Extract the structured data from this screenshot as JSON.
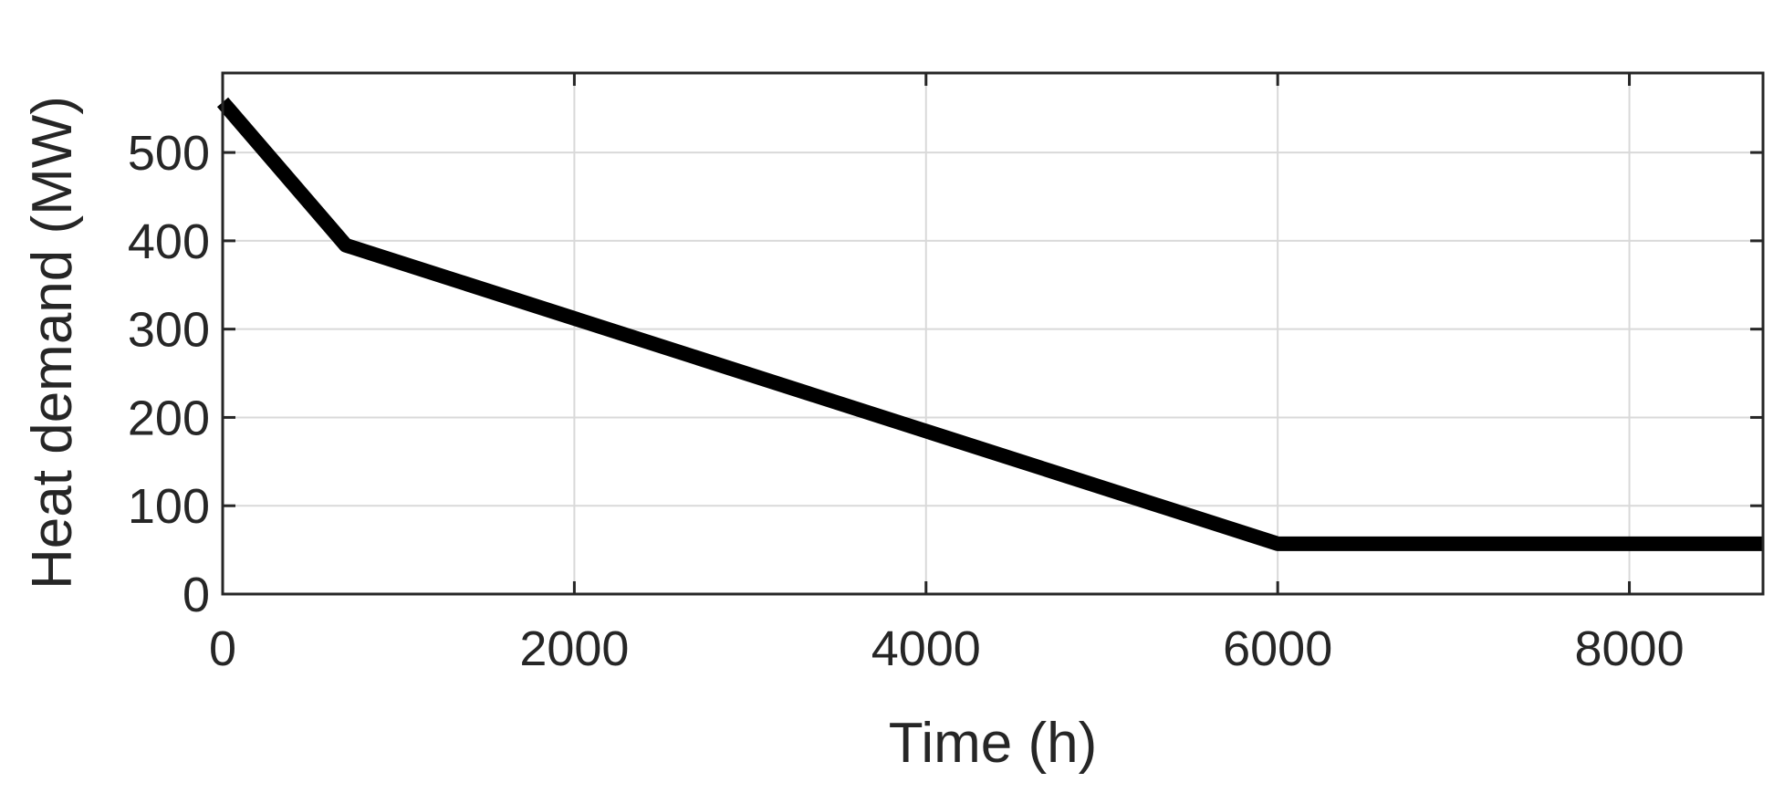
{
  "chart_data": {
    "type": "line",
    "title": "",
    "xlabel": "Time (h)",
    "ylabel": "Heat demand (MW)",
    "xlim": [
      0,
      8760
    ],
    "ylim": [
      0,
      590
    ],
    "xticks": [
      0,
      2000,
      4000,
      6000,
      8000
    ],
    "yticks": [
      0,
      100,
      200,
      300,
      400,
      500
    ],
    "grid": true,
    "series": [
      {
        "color": "#000000",
        "x": [
          0,
          700,
          6000,
          8760
        ],
        "y": [
          557,
          395,
          57,
          57
        ]
      }
    ]
  }
}
